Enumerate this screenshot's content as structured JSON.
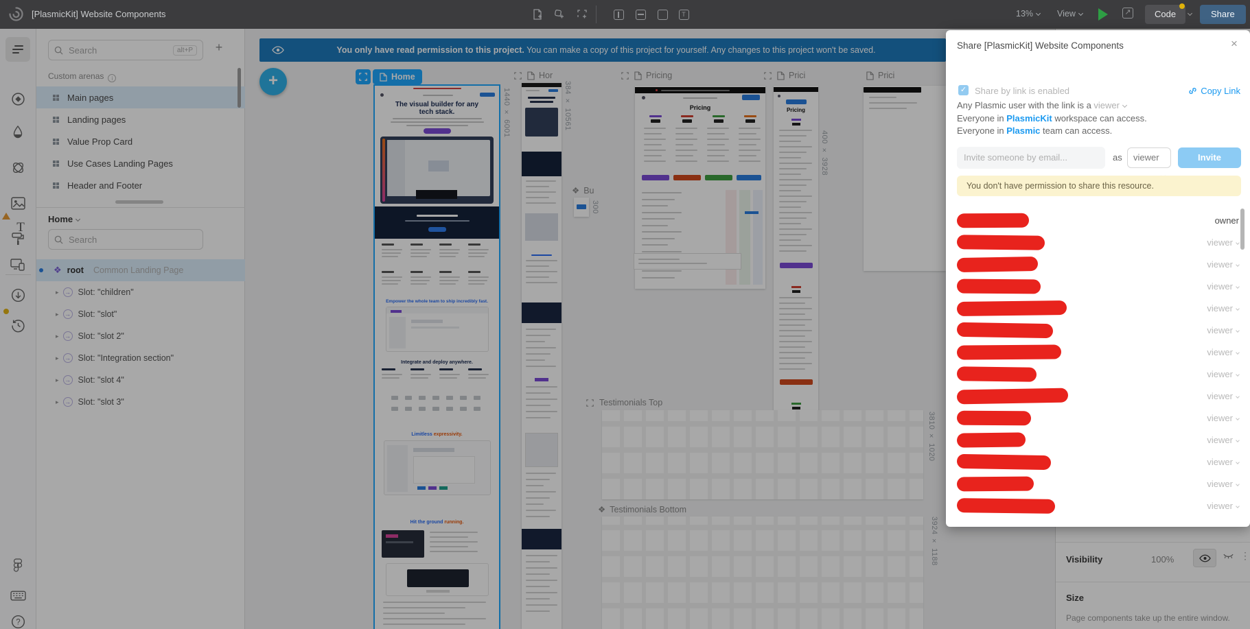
{
  "topbar": {
    "title": "[PlasmicKit] Website Components",
    "zoom_level": "13%",
    "view_label": "View",
    "code_label": "Code",
    "share_label": "Share"
  },
  "banner": {
    "bold": "You only have read permission to this project.",
    "rest": " You can make a copy of this project for yourself. Any changes to this project won't be saved."
  },
  "arena_panel": {
    "search_placeholder": "Search",
    "search_shortcut": "alt+P",
    "section_title": "Custom arenas",
    "items": [
      "Main pages",
      "Landing pages",
      "Value Prop Card",
      "Use Cases Landing Pages",
      "Header and Footer"
    ],
    "selected_index": 0
  },
  "outline_panel": {
    "header": "Home",
    "search_placeholder": "Search",
    "root_name": "root",
    "root_desc": "Common Landing Page",
    "slots": [
      "Slot: \"children\"",
      "Slot: \"slot\"",
      "Slot: \"slot 2\"",
      "Slot: \"Integration section\"",
      "Slot: \"slot 4\"",
      "Slot: \"slot 3\""
    ]
  },
  "canvas": {
    "frames": [
      {
        "label": "Home"
      },
      {
        "label": "Hor"
      },
      {
        "label": "Pricing"
      },
      {
        "label": "Prici"
      },
      {
        "label": "Prici"
      },
      {
        "label": "Bu"
      },
      {
        "label": "Testimonials Top"
      },
      {
        "label": "Testimonials Bottom"
      }
    ],
    "dim_labels": [
      "1440 × 6001",
      "384 × 10561",
      "400 × 3928",
      "3810 × 1020",
      "3924 × 1188",
      "300"
    ],
    "home": {
      "headline": "The visual builder for any tech stack.",
      "s1": "Empower the whole team to ship incredibly fast.",
      "s2": "Integrate and deploy anywhere.",
      "s3a": "Limitless ",
      "s3b": "expressivity.",
      "s4a": "Hit the ground ",
      "s4b": "running."
    },
    "pricing_title": "Pricing"
  },
  "dialog": {
    "title": "Share [PlasmicKit] Website Components",
    "close": "×",
    "link_label": "Share by link is enabled",
    "copy_link": "Copy Link",
    "link_desc_pre": "Any Plasmic user with the link is a ",
    "link_desc_role": "viewer",
    "workspace_pre": "Everyone in ",
    "workspace_link": "PlasmicKit",
    "workspace_post": " workspace can access.",
    "team_pre": "Everyone in ",
    "team_link": "Plasmic",
    "team_post": " team can access.",
    "invite_placeholder": "Invite someone by email...",
    "as_label": "as",
    "role_value": "viewer",
    "invite_label": "Invite",
    "warning": "You don't have permission to share this resource.",
    "members": [
      {
        "role": "owner",
        "redacted_width": 105
      },
      {
        "role": "viewer",
        "redacted_width": 128
      },
      {
        "role": "viewer",
        "redacted_width": 118
      },
      {
        "role": "viewer",
        "redacted_width": 122
      },
      {
        "role": "viewer",
        "redacted_width": 160
      },
      {
        "role": "viewer",
        "redacted_width": 140
      },
      {
        "role": "viewer",
        "redacted_width": 152
      },
      {
        "role": "viewer",
        "redacted_width": 116
      },
      {
        "role": "viewer",
        "redacted_width": 162
      },
      {
        "role": "viewer",
        "redacted_width": 108
      },
      {
        "role": "viewer",
        "redacted_width": 100
      },
      {
        "role": "viewer",
        "redacted_width": 137
      },
      {
        "role": "viewer",
        "redacted_width": 112
      },
      {
        "role": "viewer",
        "redacted_width": 143
      }
    ]
  },
  "inspector": {
    "visibility_label": "Visibility",
    "visibility_value": "100%",
    "size_label": "Size",
    "size_desc": "Page components take up the entire window."
  },
  "colors": {
    "accent_blue": "#1ea7ff",
    "banner_blue": "#1e7abc",
    "link_blue": "#1a99f0",
    "redaction_red": "#e8231d",
    "warning_bg": "#fbf3cf"
  }
}
